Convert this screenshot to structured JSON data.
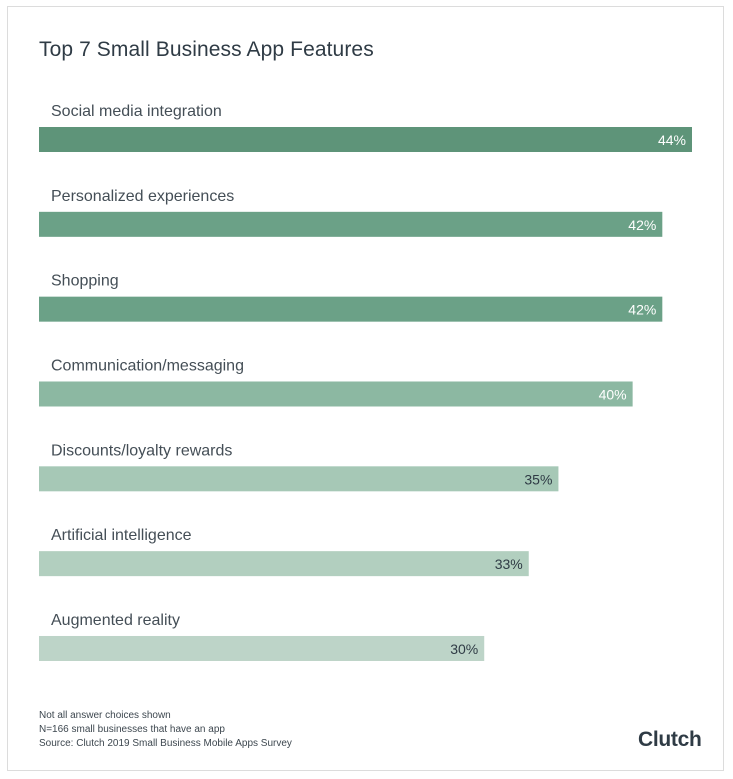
{
  "chart_data": {
    "type": "bar",
    "orientation": "horizontal",
    "title": "Top 7 Small Business App Features",
    "categories": [
      "Social media integration",
      "Personalized experiences",
      "Shopping",
      "Communication/messaging",
      "Discounts/loyalty rewards",
      "Artificial intelligence",
      "Augmented reality"
    ],
    "values": [
      44,
      42,
      42,
      40,
      35,
      33,
      30
    ],
    "value_labels": [
      "44%",
      "42%",
      "42%",
      "40%",
      "35%",
      "33%",
      "30%"
    ],
    "value_unit": "%",
    "grid": false,
    "legend": "none",
    "bar_colors": [
      "#5e9479",
      "#6ba187",
      "#6ba187",
      "#8cb8a2",
      "#a6c8b6",
      "#b2cfbf",
      "#bdd4c8"
    ],
    "label_colors": [
      "#ffffff",
      "#ffffff",
      "#ffffff",
      "#ffffff",
      "#2f3b45",
      "#2f3b45",
      "#2f3b45"
    ]
  },
  "footnotes": [
    "Not all answer choices shown",
    "N=166 small businesses that have an app",
    "Source: Clutch 2019 Small Business Mobile Apps Survey"
  ],
  "brand": "Clutch"
}
